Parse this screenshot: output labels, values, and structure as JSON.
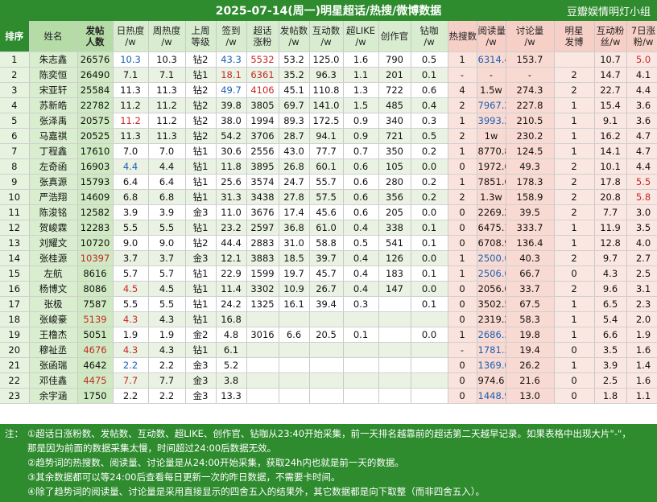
{
  "header": {
    "title": "2025-07-14(周一)明星超话/热搜/微博数据",
    "group": "豆瓣娱情明灯小组"
  },
  "columns": {
    "rank": "排序",
    "name": "姓名",
    "posts_l1": "发帖",
    "posts_l2": "人数",
    "day_heat_l1": "日热度",
    "day_heat_l2": "/w",
    "week_heat_l1": "周热度",
    "week_heat_l2": "/w",
    "last_week_level_l1": "上周",
    "last_week_level_l2": "等级",
    "checkin_l1": "签到",
    "checkin_l2": "/w",
    "topic_fans_l1": "超话",
    "topic_fans_l2": "涨粉",
    "post_count_l1": "发帖数",
    "post_count_l2": "/w",
    "interaction_l1": "互动数",
    "interaction_l2": "/w",
    "super_like_l1": "超LIKE",
    "super_like_l2": "/w",
    "creator": "创作官",
    "diamond_l1": "钻咖",
    "diamond_l2": "/w",
    "hot_search": "热搜数",
    "read_l1": "阅读量",
    "read_l2": "/w",
    "discuss_l1": "讨论量",
    "discuss_l2": "/w",
    "weibo_post_l1": "明星",
    "weibo_post_l2": "发博",
    "wb_interaction_l1": "互动粉",
    "wb_interaction_l2": "丝/w",
    "fans_7d_l1": "7日涨",
    "fans_7d_l2": "粉/w"
  },
  "rows": [
    {
      "rank": "1",
      "name": "朱志鑫",
      "posts": "26576",
      "day": "10.3",
      "day_c": "blue",
      "week": "10.3",
      "level": "钻2",
      "checkin": "43.3",
      "checkin_c": "blue",
      "fans": "5532",
      "fans_c": "red",
      "pc": "53.2",
      "inter": "125.0",
      "like": "1.6",
      "creator": "790",
      "diamond": "0.5",
      "hot": "1",
      "read": "6314.4",
      "read_c": "blue",
      "discuss": "153.7",
      "wb": "",
      "wbi": "10.7",
      "f7": "5.0",
      "f7_c": "red"
    },
    {
      "rank": "2",
      "name": "陈奕恒",
      "posts": "26490",
      "day": "7.1",
      "day_c": "",
      "week": "7.1",
      "level": "钻1",
      "checkin": "18.1",
      "checkin_c": "red",
      "fans": "6361",
      "fans_c": "red",
      "pc": "35.2",
      "inter": "96.3",
      "like": "1.1",
      "creator": "201",
      "diamond": "0.1",
      "hot": "-",
      "read": "-",
      "read_c": "",
      "discuss": "-",
      "wb": "2",
      "wbi": "14.7",
      "f7": "4.1",
      "f7_c": ""
    },
    {
      "rank": "3",
      "name": "宋亚轩",
      "posts": "25584",
      "day": "11.3",
      "day_c": "",
      "week": "11.3",
      "level": "钻2",
      "checkin": "49.7",
      "checkin_c": "blue",
      "fans": "4106",
      "fans_c": "red",
      "pc": "45.1",
      "inter": "110.8",
      "like": "1.3",
      "creator": "722",
      "diamond": "0.6",
      "hot": "4",
      "read": "1.5w",
      "read_c": "",
      "discuss": "274.3",
      "wb": "2",
      "wbi": "22.7",
      "f7": "4.4",
      "f7_c": ""
    },
    {
      "rank": "4",
      "name": "苏新皓",
      "posts": "22782",
      "day": "11.2",
      "day_c": "",
      "week": "11.2",
      "level": "钻2",
      "checkin": "39.8",
      "checkin_c": "",
      "fans": "3805",
      "fans_c": "",
      "pc": "69.7",
      "inter": "141.0",
      "like": "1.5",
      "creator": "485",
      "diamond": "0.4",
      "hot": "2",
      "read": "7967.2",
      "read_c": "blue",
      "discuss": "227.8",
      "wb": "1",
      "wbi": "15.4",
      "f7": "3.6",
      "f7_c": ""
    },
    {
      "rank": "5",
      "name": "张泽禹",
      "posts": "20575",
      "day": "11.2",
      "day_c": "red",
      "week": "11.2",
      "level": "钻2",
      "checkin": "38.0",
      "checkin_c": "",
      "fans": "1994",
      "fans_c": "",
      "pc": "89.3",
      "inter": "172.5",
      "like": "0.9",
      "creator": "340",
      "diamond": "0.3",
      "hot": "1",
      "read": "3993.2",
      "read_c": "blue",
      "discuss": "210.5",
      "wb": "1",
      "wbi": "9.1",
      "f7": "3.6",
      "f7_c": ""
    },
    {
      "rank": "6",
      "name": "马嘉祺",
      "posts": "20525",
      "day": "11.3",
      "day_c": "",
      "week": "11.3",
      "level": "钻2",
      "checkin": "54.2",
      "checkin_c": "",
      "fans": "3706",
      "fans_c": "",
      "pc": "28.7",
      "inter": "94.1",
      "like": "0.9",
      "creator": "721",
      "diamond": "0.5",
      "hot": "2",
      "read": "1w",
      "read_c": "",
      "discuss": "230.2",
      "wb": "1",
      "wbi": "16.2",
      "f7": "4.7",
      "f7_c": ""
    },
    {
      "rank": "7",
      "name": "丁程鑫",
      "posts": "17610",
      "day": "7.0",
      "day_c": "",
      "week": "7.0",
      "level": "钻1",
      "checkin": "30.6",
      "checkin_c": "",
      "fans": "2556",
      "fans_c": "",
      "pc": "43.0",
      "inter": "77.7",
      "like": "0.7",
      "creator": "350",
      "diamond": "0.2",
      "hot": "1",
      "read": "8770.8",
      "read_c": "",
      "discuss": "124.5",
      "wb": "1",
      "wbi": "14.1",
      "f7": "4.7",
      "f7_c": ""
    },
    {
      "rank": "8",
      "name": "左奇函",
      "posts": "16903",
      "day": "4.4",
      "day_c": "blue",
      "week": "4.4",
      "level": "钻1",
      "checkin": "11.8",
      "checkin_c": "",
      "fans": "3895",
      "fans_c": "",
      "pc": "26.8",
      "inter": "60.1",
      "like": "0.6",
      "creator": "105",
      "diamond": "0.0",
      "hot": "0",
      "read": "1972.6",
      "read_c": "",
      "discuss": "49.3",
      "wb": "2",
      "wbi": "10.1",
      "f7": "4.4",
      "f7_c": ""
    },
    {
      "rank": "9",
      "name": "张真源",
      "posts": "15793",
      "day": "6.4",
      "day_c": "",
      "week": "6.4",
      "level": "钻1",
      "checkin": "25.6",
      "checkin_c": "",
      "fans": "3574",
      "fans_c": "",
      "pc": "24.7",
      "inter": "55.7",
      "like": "0.6",
      "creator": "280",
      "diamond": "0.2",
      "hot": "1",
      "read": "7851.6",
      "read_c": "",
      "discuss": "178.3",
      "wb": "2",
      "wbi": "17.8",
      "f7": "5.5",
      "f7_c": "red"
    },
    {
      "rank": "10",
      "name": "严浩翔",
      "posts": "14609",
      "day": "6.8",
      "day_c": "",
      "week": "6.8",
      "level": "钻1",
      "checkin": "31.3",
      "checkin_c": "",
      "fans": "3438",
      "fans_c": "",
      "pc": "27.8",
      "inter": "57.5",
      "like": "0.6",
      "creator": "356",
      "diamond": "0.2",
      "hot": "2",
      "read": "1.3w",
      "read_c": "",
      "discuss": "158.9",
      "wb": "2",
      "wbi": "20.8",
      "f7": "5.8",
      "f7_c": "red"
    },
    {
      "rank": "11",
      "name": "陈浚铭",
      "posts": "12582",
      "day": "3.9",
      "day_c": "",
      "week": "3.9",
      "level": "金3",
      "checkin": "11.0",
      "checkin_c": "",
      "fans": "3676",
      "fans_c": "",
      "pc": "17.4",
      "inter": "45.6",
      "like": "0.6",
      "creator": "205",
      "diamond": "0.0",
      "hot": "0",
      "read": "2269.2",
      "read_c": "",
      "discuss": "39.5",
      "wb": "2",
      "wbi": "7.7",
      "f7": "3.0",
      "f7_c": ""
    },
    {
      "rank": "12",
      "name": "贺峻霖",
      "posts": "12283",
      "day": "5.5",
      "day_c": "",
      "week": "5.5",
      "level": "钻1",
      "checkin": "23.2",
      "checkin_c": "",
      "fans": "2597",
      "fans_c": "",
      "pc": "36.8",
      "inter": "61.0",
      "like": "0.4",
      "creator": "338",
      "diamond": "0.1",
      "hot": "0",
      "read": "6475.1",
      "read_c": "",
      "discuss": "333.7",
      "wb": "1",
      "wbi": "11.9",
      "f7": "3.5",
      "f7_c": ""
    },
    {
      "rank": "13",
      "name": "刘耀文",
      "posts": "10720",
      "day": "9.0",
      "day_c": "",
      "week": "9.0",
      "level": "钻2",
      "checkin": "44.4",
      "checkin_c": "",
      "fans": "2883",
      "fans_c": "",
      "pc": "31.0",
      "inter": "58.8",
      "like": "0.5",
      "creator": "541",
      "diamond": "0.1",
      "hot": "0",
      "read": "6708.9",
      "read_c": "",
      "discuss": "136.4",
      "wb": "1",
      "wbi": "12.8",
      "f7": "4.0",
      "f7_c": ""
    },
    {
      "rank": "14",
      "name": "张桂源",
      "posts": "10397",
      "posts_c": "red",
      "day": "3.7",
      "day_c": "",
      "week": "3.7",
      "level": "金3",
      "checkin": "12.1",
      "checkin_c": "",
      "fans": "3883",
      "fans_c": "",
      "pc": "18.5",
      "inter": "39.7",
      "like": "0.4",
      "creator": "126",
      "diamond": "0.0",
      "hot": "1",
      "read": "2500.0",
      "read_c": "blue",
      "discuss": "40.3",
      "wb": "2",
      "wbi": "9.7",
      "f7": "2.7",
      "f7_c": ""
    },
    {
      "rank": "15",
      "name": "左航",
      "posts": "8616",
      "day": "5.7",
      "day_c": "",
      "week": "5.7",
      "level": "钻1",
      "checkin": "22.9",
      "checkin_c": "",
      "fans": "1599",
      "fans_c": "",
      "pc": "19.7",
      "inter": "45.7",
      "like": "0.4",
      "creator": "183",
      "diamond": "0.1",
      "hot": "1",
      "read": "2506.0",
      "read_c": "blue",
      "discuss": "66.7",
      "wb": "0",
      "wbi": "4.3",
      "f7": "2.5",
      "f7_c": ""
    },
    {
      "rank": "16",
      "name": "杨博文",
      "posts": "8086",
      "day": "4.5",
      "day_c": "red",
      "week": "4.5",
      "level": "钻1",
      "checkin": "11.4",
      "checkin_c": "",
      "fans": "3302",
      "fans_c": "",
      "pc": "10.9",
      "inter": "26.7",
      "like": "0.4",
      "creator": "147",
      "diamond": "0.0",
      "hot": "0",
      "read": "2056.0",
      "read_c": "",
      "discuss": "33.7",
      "wb": "2",
      "wbi": "9.6",
      "f7": "3.1",
      "f7_c": ""
    },
    {
      "rank": "17",
      "name": "张极",
      "posts": "7587",
      "day": "5.5",
      "day_c": "",
      "week": "5.5",
      "level": "钻1",
      "checkin": "24.2",
      "checkin_c": "",
      "fans": "1325",
      "fans_c": "",
      "pc": "16.1",
      "inter": "39.4",
      "like": "0.3",
      "creator": "",
      "diamond": "0.1",
      "hot": "0",
      "read": "3502.5",
      "read_c": "",
      "discuss": "67.5",
      "wb": "1",
      "wbi": "6.5",
      "f7": "2.3",
      "f7_c": ""
    },
    {
      "rank": "18",
      "name": "张峻豪",
      "posts": "5139",
      "posts_c": "red",
      "day": "4.3",
      "day_c": "red",
      "week": "4.3",
      "level": "钻1",
      "checkin": "16.8",
      "checkin_c": "",
      "fans": "",
      "fans_c": "",
      "pc": "",
      "inter": "",
      "like": "",
      "creator": "",
      "diamond": "",
      "hot": "0",
      "read": "2319.2",
      "read_c": "",
      "discuss": "58.3",
      "wb": "1",
      "wbi": "5.4",
      "f7": "2.0",
      "f7_c": ""
    },
    {
      "rank": "19",
      "name": "王橹杰",
      "posts": "5051",
      "day": "1.9",
      "day_c": "",
      "week": "1.9",
      "level": "金2",
      "checkin": "4.8",
      "checkin_c": "",
      "fans": "3016",
      "fans_c": "",
      "pc": "6.6",
      "inter": "20.5",
      "like": "0.1",
      "creator": "",
      "diamond": "0.0",
      "hot": "1",
      "read": "2686.3",
      "read_c": "blue",
      "discuss": "19.8",
      "wb": "1",
      "wbi": "6.6",
      "f7": "1.9",
      "f7_c": ""
    },
    {
      "rank": "20",
      "name": "穆祉丞",
      "posts": "4676",
      "posts_c": "red",
      "day": "4.3",
      "day_c": "red",
      "week": "4.3",
      "level": "钻1",
      "checkin": "6.1",
      "checkin_c": "",
      "fans": "",
      "fans_c": "",
      "pc": "",
      "inter": "",
      "like": "",
      "creator": "",
      "diamond": "",
      "hot": "-",
      "read": "1781.3",
      "read_c": "blue",
      "discuss": "19.4",
      "wb": "0",
      "wbi": "3.5",
      "f7": "1.6",
      "f7_c": ""
    },
    {
      "rank": "21",
      "name": "张函瑞",
      "posts": "4642",
      "day": "2.2",
      "day_c": "blue",
      "week": "2.2",
      "level": "金3",
      "checkin": "5.2",
      "checkin_c": "",
      "fans": "",
      "fans_c": "",
      "pc": "",
      "inter": "",
      "like": "",
      "creator": "",
      "diamond": "",
      "hot": "0",
      "read": "1369.0",
      "read_c": "blue",
      "discuss": "26.2",
      "wb": "1",
      "wbi": "3.9",
      "f7": "1.4",
      "f7_c": ""
    },
    {
      "rank": "22",
      "name": "邓佳鑫",
      "posts": "4475",
      "posts_c": "red",
      "day": "7.7",
      "day_c": "red",
      "week": "7.7",
      "level": "金3",
      "checkin": "3.8",
      "checkin_c": "",
      "fans": "",
      "fans_c": "",
      "pc": "",
      "inter": "",
      "like": "",
      "creator": "",
      "diamond": "",
      "hot": "0",
      "read": "974.6",
      "read_c": "",
      "discuss": "21.6",
      "wb": "0",
      "wbi": "2.5",
      "f7": "1.6",
      "f7_c": ""
    },
    {
      "rank": "23",
      "name": "余宇涵",
      "posts": "1750",
      "day": "2.2",
      "day_c": "",
      "week": "2.2",
      "level": "金3",
      "checkin": "13.3",
      "checkin_c": "",
      "fans": "",
      "fans_c": "",
      "pc": "",
      "inter": "",
      "like": "",
      "creator": "",
      "diamond": "",
      "hot": "0",
      "read": "1448.9",
      "read_c": "blue",
      "discuss": "13.0",
      "wb": "0",
      "wbi": "1.8",
      "f7": "1.1",
      "f7_c": ""
    }
  ],
  "notes": {
    "lead": "注：",
    "n1": "①超话日涨粉数、发帖数、互动数、超LIKE、创作官、钻咖从23:40开始采集，前一天排名越靠前的超话第二天越早记录。如果表格中出现大片\"-\"，",
    "n1b": "那是因为前面的数据采集太慢，时间超过24:00后数据无效。",
    "n2": "②趋势词的热搜数、阅读量、讨论量是从24:00开始采集，获取24h内也就是前一天的数据。",
    "n3": "③其余数据都可以等24:00后查看每日更新一次的昨日数据，不需要卡时间。",
    "n4": "④除了趋势词的阅读量、讨论量是采用直接显示的四舍五入的结果外，其它数据都是向下取整（而非四舍五入）。"
  }
}
